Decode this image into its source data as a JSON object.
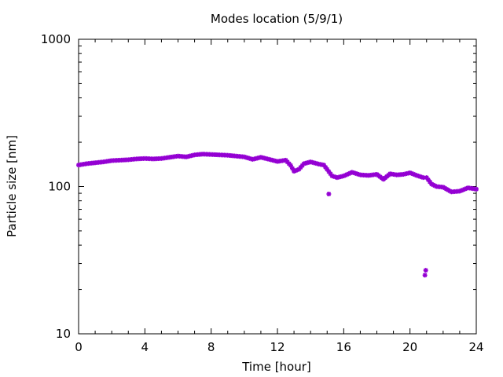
{
  "chart_data": {
    "type": "scatter",
    "title": "Modes location (5/9/1)",
    "xlabel": "Time [hour]",
    "ylabel": "Particle size [nm]",
    "xlim": [
      0,
      24
    ],
    "ylim": [
      10,
      1000
    ],
    "yscale": "log",
    "x_ticks": [
      "0",
      "4",
      "8",
      "12",
      "16",
      "20",
      "24"
    ],
    "y_ticks": [
      "10",
      "100",
      "1000"
    ],
    "grid": false,
    "legend": "none",
    "marker": "asterisk",
    "color": "#9400d3",
    "series": [
      {
        "x": [
          0.0,
          0.5,
          1.0,
          1.5,
          2.0,
          2.5,
          3.0,
          3.5,
          4.0,
          4.5,
          5.0,
          5.5,
          6.0,
          6.5,
          7.0,
          7.5,
          8.0,
          8.5,
          9.0,
          9.5,
          10.0,
          10.5,
          11.0,
          11.5,
          12.0,
          12.5,
          12.8,
          13.0,
          13.3,
          13.6,
          14.0,
          14.5,
          14.8,
          15.1,
          15.3,
          15.6,
          16.0,
          16.5,
          17.0,
          17.5,
          18.0,
          18.4,
          18.8,
          19.2,
          19.6,
          20.0,
          20.4,
          20.8,
          20.9,
          20.95,
          21.0,
          21.3,
          21.6,
          22.0,
          22.5,
          23.0,
          23.5,
          24.0
        ],
        "y": [
          140,
          143,
          145,
          147,
          150,
          151,
          152,
          154,
          155,
          154,
          155,
          158,
          161,
          159,
          164,
          166,
          165,
          164,
          163,
          161,
          159,
          153,
          158,
          153,
          148,
          151,
          139,
          127,
          131,
          143,
          147,
          142,
          140,
          89,
          118,
          115,
          118,
          125,
          120,
          119,
          121,
          112,
          122,
          120,
          121,
          124,
          119,
          115,
          25,
          27,
          115,
          104,
          100,
          99,
          92,
          93,
          98,
          96
        ]
      }
    ]
  }
}
